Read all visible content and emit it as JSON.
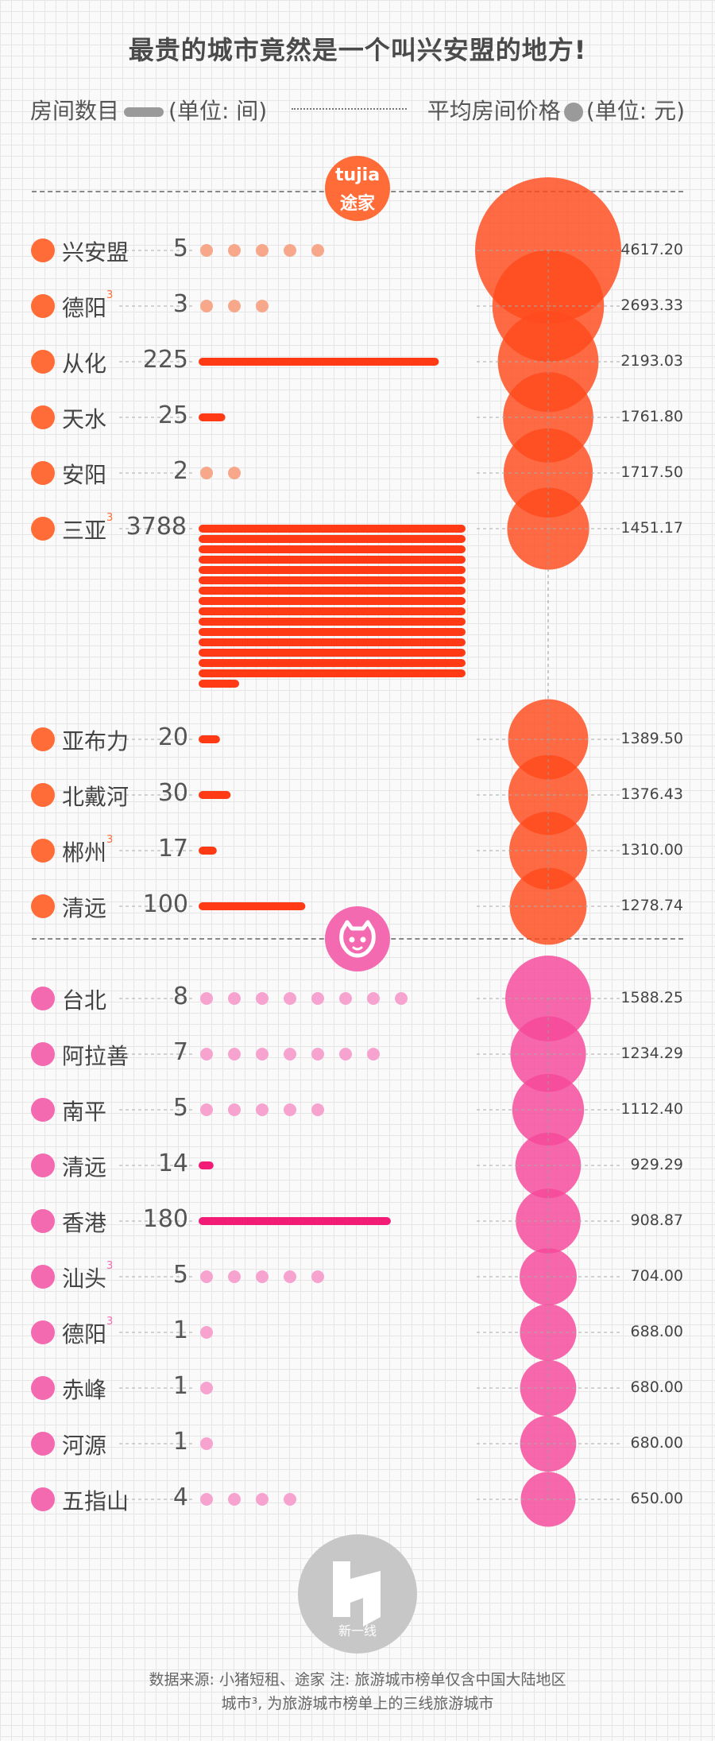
{
  "title": "最贵的城市竟然是一个叫兴安盟的地方!",
  "legend": {
    "left_label": "房间数目",
    "left_unit": "(单位: 间)",
    "right_label": "平均房间价格",
    "right_unit": "(单位: 元)"
  },
  "logos": {
    "tujia_top": "tujia",
    "tujia_bottom": "途家",
    "pig_icon": "pig-icon",
    "footer_brand": "新一线"
  },
  "footer": {
    "line1": "数据来源: 小猪短租、途家  注: 旅游城市榜单仅含中国大陆地区",
    "line2": "城市³, 为旅游城市榜单上的三线旅游城市"
  },
  "colors": {
    "tujia": "#ff3a14",
    "tujia_badge": "#ff6c37",
    "tujia_dot": "#f7a88a",
    "pig": "#f21b76",
    "pig_badge": "#f46ab0",
    "pig_dot": "#f7a3cf"
  },
  "chart_data": [
    {
      "type": "bar",
      "name": "途家",
      "unit_bar": "间",
      "unit_circle": "元",
      "rows": [
        {
          "rank": "1",
          "city": "兴安盟",
          "tier3": false,
          "rooms": 5,
          "price": 4617.2,
          "price_label": "4617.20"
        },
        {
          "rank": "2",
          "city": "德阳",
          "tier3": true,
          "rooms": 3,
          "price": 2693.33,
          "price_label": "2693.33"
        },
        {
          "rank": "3",
          "city": "从化",
          "tier3": false,
          "rooms": 225,
          "price": 2193.03,
          "price_label": "2193.03"
        },
        {
          "rank": "4",
          "city": "天水",
          "tier3": false,
          "rooms": 25,
          "price": 1761.8,
          "price_label": "1761.80"
        },
        {
          "rank": "5",
          "city": "安阳",
          "tier3": false,
          "rooms": 2,
          "price": 1717.5,
          "price_label": "1717.50"
        },
        {
          "rank": "6",
          "city": "三亚",
          "tier3": true,
          "rooms": 3788,
          "price": 1451.17,
          "price_label": "1451.17"
        },
        {
          "rank": "7",
          "city": "亚布力",
          "tier3": false,
          "rooms": 20,
          "price": 1389.5,
          "price_label": "1389.50"
        },
        {
          "rank": "8",
          "city": "北戴河",
          "tier3": false,
          "rooms": 30,
          "price": 1376.43,
          "price_label": "1376.43"
        },
        {
          "rank": "9",
          "city": "郴州",
          "tier3": true,
          "rooms": 17,
          "price": 1310.0,
          "price_label": "1310.00"
        },
        {
          "rank": "10",
          "city": "清远",
          "tier3": false,
          "rooms": 100,
          "price": 1278.74,
          "price_label": "1278.74"
        }
      ]
    },
    {
      "type": "bar",
      "name": "小猪短租",
      "unit_bar": "间",
      "unit_circle": "元",
      "rows": [
        {
          "rank": "1",
          "city": "台北",
          "tier3": false,
          "rooms": 8,
          "price": 1588.25,
          "price_label": "1588.25"
        },
        {
          "rank": "2",
          "city": "阿拉善",
          "tier3": false,
          "rooms": 7,
          "price": 1234.29,
          "price_label": "1234.29"
        },
        {
          "rank": "3",
          "city": "南平",
          "tier3": false,
          "rooms": 5,
          "price": 1112.4,
          "price_label": "1112.40"
        },
        {
          "rank": "4",
          "city": "清远",
          "tier3": false,
          "rooms": 14,
          "price": 929.29,
          "price_label": "929.29"
        },
        {
          "rank": "5",
          "city": "香港",
          "tier3": false,
          "rooms": 180,
          "price": 908.87,
          "price_label": "908.87"
        },
        {
          "rank": "6",
          "city": "汕头",
          "tier3": true,
          "rooms": 5,
          "price": 704.0,
          "price_label": "704.00"
        },
        {
          "rank": "7",
          "city": "德阳",
          "tier3": true,
          "rooms": 1,
          "price": 688.0,
          "price_label": "688.00"
        },
        {
          "rank": "8",
          "city": "赤峰",
          "tier3": false,
          "rooms": 1,
          "price": 680.0,
          "price_label": "680.00"
        },
        {
          "rank": "9",
          "city": "河源",
          "tier3": false,
          "rooms": 1,
          "price": 680.0,
          "price_label": "680.00"
        },
        {
          "rank": "10",
          "city": "五指山",
          "tier3": false,
          "rooms": 4,
          "price": 650.0,
          "price_label": "650.00"
        }
      ]
    }
  ]
}
